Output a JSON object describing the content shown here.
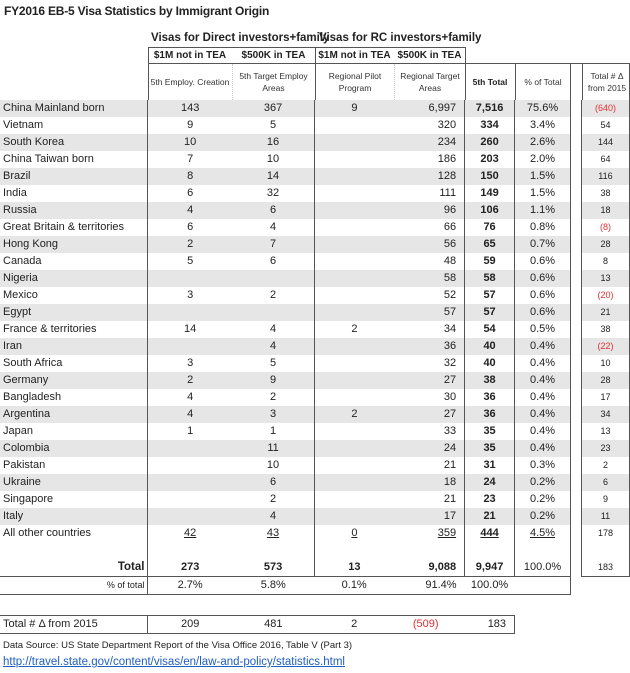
{
  "title": "FY2016 EB-5 Visa Statistics by Immigrant Origin",
  "groups": {
    "direct": "Visas for Direct investors+family",
    "rc": "Visas for RC investors+family"
  },
  "subheaders": [
    "$1M not in TEA",
    "$500K in TEA",
    "$1M not in TEA",
    "$500K in TEA"
  ],
  "columns": [
    "5th Employ. Creation",
    "5th Target Employ Areas",
    "Regional Pilot Program",
    "Regional Target Areas",
    "5th Total",
    "% of Total",
    "Total # Δ from 2015"
  ],
  "rows": [
    [
      "China Mainland born",
      "143",
      "367",
      "9",
      "6,997",
      "7,516",
      "75.6%",
      "(640)"
    ],
    [
      "Vietnam",
      "9",
      "5",
      "",
      "320",
      "334",
      "3.4%",
      "54"
    ],
    [
      "South Korea",
      "10",
      "16",
      "",
      "234",
      "260",
      "2.6%",
      "144"
    ],
    [
      "China Taiwan born",
      "7",
      "10",
      "",
      "186",
      "203",
      "2.0%",
      "64"
    ],
    [
      "Brazil",
      "8",
      "14",
      "",
      "128",
      "150",
      "1.5%",
      "116"
    ],
    [
      "India",
      "6",
      "32",
      "",
      "111",
      "149",
      "1.5%",
      "38"
    ],
    [
      "Russia",
      "4",
      "6",
      "",
      "96",
      "106",
      "1.1%",
      "18"
    ],
    [
      "Great Britain & territories",
      "6",
      "4",
      "",
      "66",
      "76",
      "0.8%",
      "(8)"
    ],
    [
      "Hong Kong",
      "2",
      "7",
      "",
      "56",
      "65",
      "0.7%",
      "28"
    ],
    [
      "Canada",
      "5",
      "6",
      "",
      "48",
      "59",
      "0.6%",
      "8"
    ],
    [
      "Nigeria",
      "",
      "",
      "",
      "58",
      "58",
      "0.6%",
      "13"
    ],
    [
      "Mexico",
      "3",
      "2",
      "",
      "52",
      "57",
      "0.6%",
      "(20)"
    ],
    [
      "Egypt",
      "",
      "",
      "",
      "57",
      "57",
      "0.6%",
      "21"
    ],
    [
      "France & territories",
      "14",
      "4",
      "2",
      "34",
      "54",
      "0.5%",
      "38"
    ],
    [
      "Iran",
      "",
      "4",
      "",
      "36",
      "40",
      "0.4%",
      "(22)"
    ],
    [
      "South Africa",
      "3",
      "5",
      "",
      "32",
      "40",
      "0.4%",
      "10"
    ],
    [
      "Germany",
      "2",
      "9",
      "",
      "27",
      "38",
      "0.4%",
      "28"
    ],
    [
      "Bangladesh",
      "4",
      "2",
      "",
      "30",
      "36",
      "0.4%",
      "17"
    ],
    [
      "Argentina",
      "4",
      "3",
      "2",
      "27",
      "36",
      "0.4%",
      "34"
    ],
    [
      "Japan",
      "1",
      "1",
      "",
      "33",
      "35",
      "0.4%",
      "13"
    ],
    [
      "Colombia",
      "",
      "11",
      "",
      "24",
      "35",
      "0.4%",
      "23"
    ],
    [
      "Pakistan",
      "",
      "10",
      "",
      "21",
      "31",
      "0.3%",
      "2"
    ],
    [
      "Ukraine",
      "",
      "6",
      "",
      "18",
      "24",
      "0.2%",
      "6"
    ],
    [
      "Singapore",
      "",
      "2",
      "",
      "21",
      "23",
      "0.2%",
      "9"
    ],
    [
      "Italy",
      "",
      "4",
      "",
      "17",
      "21",
      "0.2%",
      "11"
    ],
    [
      "All other countries",
      "42",
      "43",
      "0",
      "359",
      "444",
      "4.5%",
      "178"
    ]
  ],
  "total": [
    "Total",
    "273",
    "573",
    "13",
    "9,088",
    "9,947",
    "100.0%",
    "183"
  ],
  "pct_total": [
    "% of total",
    "2.7%",
    "5.8%",
    "0.1%",
    "91.4%",
    "100.0%"
  ],
  "delta": [
    "Total # Δ from 2015",
    "209",
    "481",
    "2",
    "(509)",
    "183"
  ],
  "source": "Data Source: US State Department Report of the Visa Office 2016, Table V (Part 3)",
  "link": "http://travel.state.gov/content/visas/en/law-and-policy/statistics.html",
  "colors": {
    "negative": "#e03030",
    "alt_row": "#e6e6e6",
    "link": "#1f5fbf"
  }
}
